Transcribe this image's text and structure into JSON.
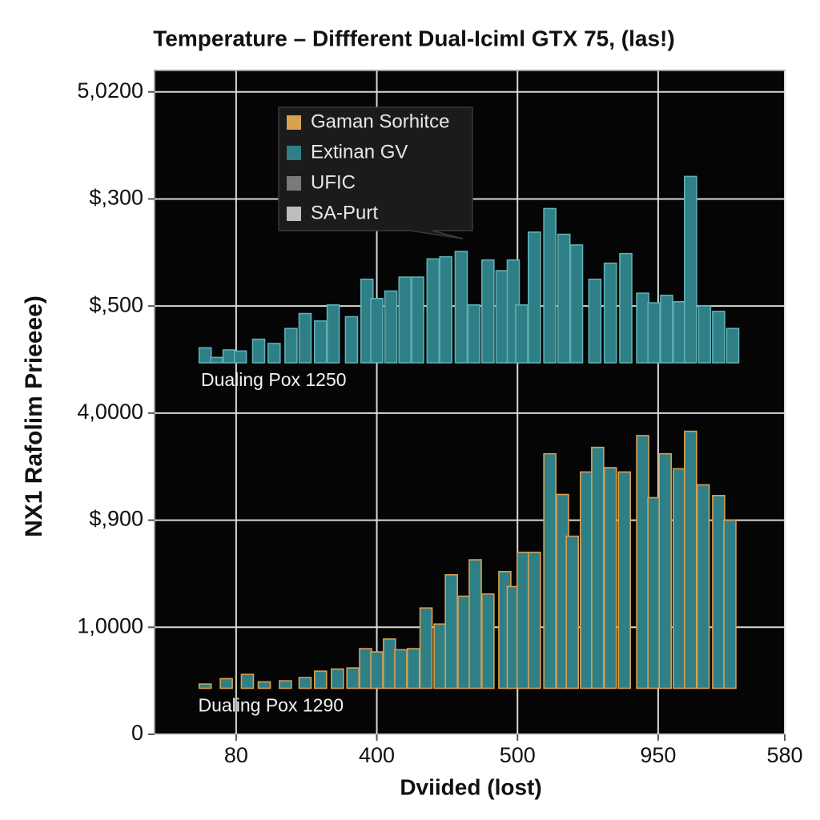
{
  "chart_data": {
    "type": "bar",
    "title": "Temperature – Diffferent Dual-Iciml GTX 75, (las!)",
    "x_label": "Dviided (lost)",
    "y_label": "NX1 Rafolim Prieeee)",
    "xlim": [
      0.42,
      4.9
    ],
    "ylim": [
      0,
      6.2
    ],
    "xticks": [
      {
        "value": 1,
        "label": "80"
      },
      {
        "value": 2,
        "label": "400"
      },
      {
        "value": 3,
        "label": "500"
      },
      {
        "value": 4,
        "label": "950"
      },
      {
        "value": 4.9,
        "label": "580"
      }
    ],
    "yticks": [
      {
        "value": 0,
        "label": "0"
      },
      {
        "value": 1,
        "label": "1,0000"
      },
      {
        "value": 2,
        "label": "$,900"
      },
      {
        "value": 3,
        "label": "4,0000"
      },
      {
        "value": 4,
        "label": "$,500"
      },
      {
        "value": 5,
        "label": "$,300"
      },
      {
        "value": 6,
        "label": "5,0200"
      }
    ],
    "grid": true,
    "annotations": [
      {
        "text": "Dualing Pox 1250",
        "x": 0.75,
        "y": 3.3
      },
      {
        "text": "Dualing Pox 1290",
        "x": 0.73,
        "y": 0.26
      }
    ],
    "series": [
      {
        "name": "Gaman Sorhitce",
        "color": "#d9a050",
        "base": 0.43,
        "x": [
          0.78,
          0.93,
          1.08,
          1.2,
          1.35,
          1.49,
          1.6,
          1.72,
          1.83,
          1.92,
          2.0,
          2.09,
          2.17,
          2.26,
          2.35,
          2.45,
          2.53,
          2.62,
          2.7,
          2.79,
          2.91,
          2.97,
          3.04,
          3.12,
          3.23,
          3.32,
          3.39,
          3.49,
          3.57,
          3.66,
          3.76,
          3.89,
          3.97,
          4.05,
          4.15,
          4.23,
          4.32,
          4.43,
          4.51
        ],
        "values": [
          0.47,
          0.52,
          0.56,
          0.49,
          0.5,
          0.53,
          0.59,
          0.61,
          0.62,
          0.8,
          0.77,
          0.89,
          0.79,
          0.8,
          1.18,
          1.03,
          1.49,
          1.29,
          1.63,
          1.31,
          1.52,
          1.38,
          1.7,
          1.7,
          2.62,
          2.24,
          1.85,
          2.45,
          2.68,
          2.49,
          2.45,
          2.79,
          2.21,
          2.62,
          2.48,
          2.83,
          2.33,
          2.23,
          2.0
        ]
      },
      {
        "name": "Extinan GV",
        "color": "#2f7f86",
        "base": 3.47,
        "x": [
          0.78,
          0.86,
          0.95,
          1.03,
          1.16,
          1.27,
          1.39,
          1.49,
          1.6,
          1.69,
          1.82,
          1.93,
          2.0,
          2.1,
          2.2,
          2.29,
          2.4,
          2.49,
          2.6,
          2.69,
          2.79,
          2.89,
          2.97,
          3.03,
          3.12,
          3.23,
          3.33,
          3.42,
          3.55,
          3.66,
          3.77,
          3.89,
          3.97,
          4.06,
          4.15,
          4.23,
          4.33,
          4.43,
          4.53
        ],
        "values": [
          3.61,
          3.52,
          3.59,
          3.58,
          3.69,
          3.65,
          3.79,
          3.93,
          3.86,
          4.01,
          3.9,
          4.25,
          4.07,
          4.14,
          4.27,
          4.27,
          4.44,
          4.46,
          4.51,
          4.01,
          4.43,
          4.33,
          4.43,
          4.01,
          4.69,
          4.91,
          4.67,
          4.57,
          4.25,
          4.4,
          4.49,
          4.12,
          4.03,
          4.1,
          4.04,
          5.21,
          4.0,
          3.95,
          3.79
        ]
      },
      {
        "name": "UFIC",
        "color": "#7a7a7a",
        "x": [],
        "values": []
      },
      {
        "name": "SA-Purt",
        "color": "#bdbdbd",
        "x": [],
        "values": []
      }
    ]
  }
}
